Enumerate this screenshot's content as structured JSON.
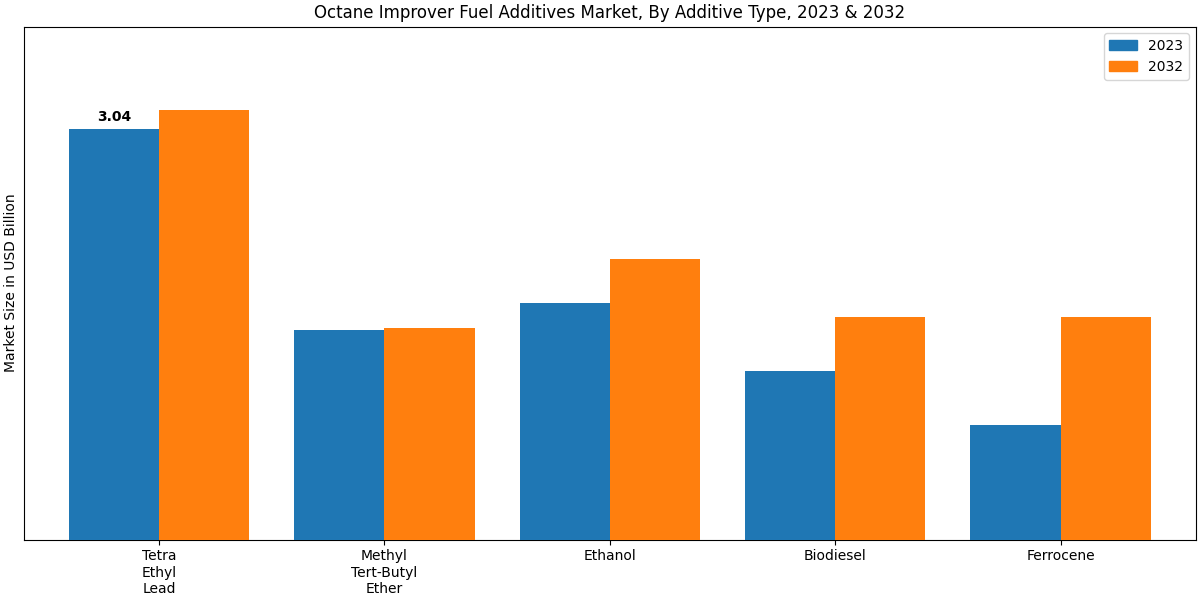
{
  "chart_data": {
    "type": "bar",
    "title": "Octane Improver Fuel Additives Market, By Additive Type, 2023 & 2032",
    "y_label": "Market Size in USD Billion",
    "categories": [
      "Tetra\nEthyl\nLead",
      "Methyl\nTert-Butyl\nEther",
      "Ethanol",
      "Biodiesel",
      "Ferrocene"
    ],
    "series": [
      {
        "name": "2023",
        "values": [
          3.04,
          1.55,
          1.75,
          1.25,
          0.85
        ]
      },
      {
        "name": "2032",
        "values": [
          3.18,
          1.57,
          2.08,
          1.65,
          1.65
        ]
      }
    ],
    "annotations": [
      {
        "text": "3.04",
        "category": "Tetra\nEthyl\nLead",
        "series": "2023"
      }
    ],
    "ylim": [
      0,
      3.8
    ],
    "tick_labels": "x",
    "legend": "upper right",
    "grid": false
  }
}
